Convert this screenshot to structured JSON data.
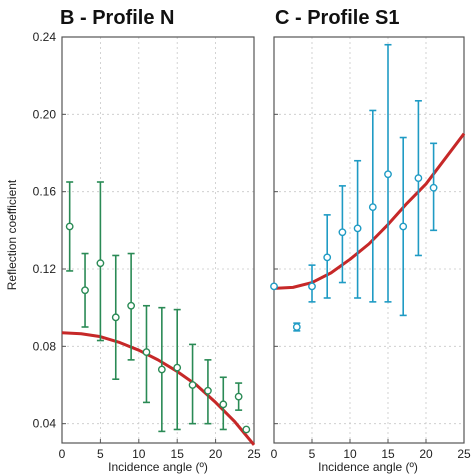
{
  "chart_data": [
    {
      "type": "scatter",
      "title": "B - Profile N",
      "xlabel": "Incidence angle (º)",
      "ylabel": "Reflection coefficient",
      "xlim": [
        0,
        25
      ],
      "ylim": [
        0.03,
        0.24
      ],
      "xticks": [
        0,
        5,
        10,
        15,
        20,
        25
      ],
      "yticks": [
        0.04,
        0.08,
        0.12,
        0.16,
        0.2,
        0.24
      ],
      "ytick_labels": [
        "0.04",
        "0.08",
        "0.12",
        "0.16",
        "0.20",
        "0.24"
      ],
      "grid": true,
      "marker_color": "#2a8a55",
      "fit_color": "#c62828",
      "series": [
        {
          "x": [
            1,
            3,
            5,
            7,
            9,
            11,
            13,
            15,
            17,
            19,
            21,
            23,
            24
          ],
          "y": [
            0.142,
            0.109,
            0.123,
            0.095,
            0.101,
            0.077,
            0.068,
            0.069,
            0.06,
            0.057,
            0.05,
            0.054,
            0.037
          ],
          "err_low": [
            0.119,
            0.09,
            0.083,
            0.063,
            0.073,
            0.051,
            0.036,
            0.037,
            0.04,
            0.04,
            0.037,
            0.047,
            0.037
          ],
          "err_high": [
            0.165,
            0.128,
            0.165,
            0.127,
            0.128,
            0.101,
            0.1,
            0.099,
            0.081,
            0.073,
            0.064,
            0.061,
            0.037
          ]
        }
      ],
      "fit": {
        "x": [
          0,
          2.5,
          5,
          7.5,
          10,
          12.5,
          15,
          17.5,
          20,
          22.5,
          25
        ],
        "y": [
          0.087,
          0.0865,
          0.085,
          0.082,
          0.078,
          0.073,
          0.067,
          0.06,
          0.051,
          0.041,
          0.029
        ]
      }
    },
    {
      "type": "scatter",
      "title": "C - Profile S1",
      "xlabel": "Incidence angle (º)",
      "ylabel": "",
      "xlim": [
        0,
        25
      ],
      "ylim": [
        0.03,
        0.24
      ],
      "xticks": [
        0,
        5,
        10,
        15,
        20,
        25
      ],
      "yticks": [
        0.04,
        0.08,
        0.12,
        0.16,
        0.2,
        0.24
      ],
      "grid": true,
      "marker_color": "#1f9bc4",
      "fit_color": "#c62828",
      "series": [
        {
          "x": [
            0,
            3,
            5,
            7,
            9,
            11,
            13,
            15,
            17,
            19,
            21
          ],
          "y": [
            0.111,
            0.09,
            0.111,
            0.126,
            0.139,
            0.141,
            0.152,
            0.169,
            0.142,
            0.167,
            0.162
          ],
          "err_low": [
            0.111,
            0.088,
            0.103,
            0.105,
            0.113,
            0.105,
            0.103,
            0.103,
            0.096,
            0.127,
            0.14
          ],
          "err_high": [
            0.111,
            0.092,
            0.122,
            0.148,
            0.163,
            0.176,
            0.202,
            0.236,
            0.188,
            0.207,
            0.185
          ]
        }
      ],
      "fit": {
        "x": [
          0,
          2.5,
          5,
          7.5,
          10,
          12.5,
          15,
          17.5,
          20,
          22.5,
          25
        ],
        "y": [
          0.11,
          0.1105,
          0.113,
          0.118,
          0.125,
          0.133,
          0.143,
          0.154,
          0.164,
          0.177,
          0.19
        ]
      }
    }
  ]
}
